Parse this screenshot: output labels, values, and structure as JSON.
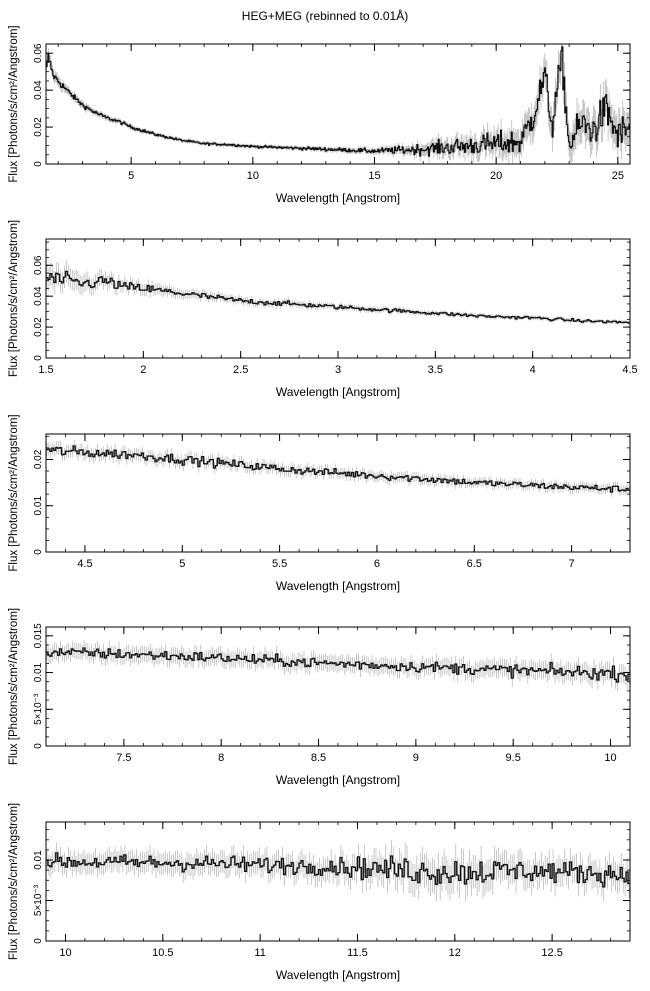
{
  "figure_title": "HEG+MEG (rebinned to 0.01Å)",
  "chart_data": [
    {
      "type": "line",
      "style": "histogram with error bars",
      "xlabel": "Wavelength [Angstrom]",
      "ylabel": "Flux [Photons/s/cm²/Angstrom]",
      "xlim": [
        1.5,
        25.5
      ],
      "ylim": [
        0,
        0.065
      ],
      "xticks": [
        {
          "v": 5,
          "label": "5"
        },
        {
          "v": 10,
          "label": "10"
        },
        {
          "v": 15,
          "label": "15"
        },
        {
          "v": 20,
          "label": "20"
        },
        {
          "v": 25,
          "label": "25"
        }
      ],
      "yticks": [
        {
          "v": 0,
          "label": "0"
        },
        {
          "v": 0.02,
          "label": "0.02"
        },
        {
          "v": 0.04,
          "label": "0.04"
        },
        {
          "v": 0.06,
          "label": "0.06"
        }
      ],
      "x": [
        1.5,
        1.6,
        1.8,
        2,
        2.5,
        3,
        3.5,
        4,
        4.5,
        5,
        6,
        7,
        8,
        9,
        10,
        11,
        12,
        13,
        14,
        15,
        16,
        17,
        18,
        19,
        20,
        21,
        21.5,
        22,
        22.3,
        22.7,
        23,
        23.5,
        24,
        24.5,
        25,
        25.5
      ],
      "y": [
        0.05,
        0.058,
        0.048,
        0.045,
        0.038,
        0.032,
        0.028,
        0.025,
        0.023,
        0.02,
        0.016,
        0.013,
        0.011,
        0.0105,
        0.0095,
        0.009,
        0.0085,
        0.008,
        0.0075,
        0.007,
        0.0075,
        0.008,
        0.009,
        0.01,
        0.011,
        0.012,
        0.025,
        0.048,
        0.02,
        0.058,
        0.01,
        0.022,
        0.018,
        0.03,
        0.015,
        0.02
      ],
      "noise": [
        0.002,
        0.003,
        0.002,
        0.002,
        0.0015,
        0.0012,
        0.001,
        0.001,
        0.0009,
        0.0008,
        0.0007,
        0.0006,
        0.0006,
        0.0006,
        0.0006,
        0.0007,
        0.0008,
        0.0009,
        0.001,
        0.0012,
        0.002,
        0.003,
        0.004,
        0.005,
        0.006,
        0.007,
        0.008,
        0.008,
        0.008,
        0.008,
        0.008,
        0.009,
        0.009,
        0.009,
        0.009,
        0.009
      ],
      "err": [
        0.003,
        0.003,
        0.003,
        0.003,
        0.002,
        0.002,
        0.0015,
        0.0015,
        0.0013,
        0.0012,
        0.001,
        0.001,
        0.001,
        0.001,
        0.001,
        0.001,
        0.001,
        0.0012,
        0.0013,
        0.0015,
        0.002,
        0.003,
        0.004,
        0.005,
        0.006,
        0.007,
        0.008,
        0.008,
        0.008,
        0.008,
        0.008,
        0.009,
        0.009,
        0.009,
        0.009,
        0.009
      ],
      "bin_width": 0.04
    },
    {
      "type": "line",
      "style": "histogram with error bars",
      "xlabel": "Wavelength [Angstrom]",
      "ylabel": "Flux [Photons/s/cm²/Angstrom]",
      "xlim": [
        1.5,
        4.5
      ],
      "ylim": [
        0,
        0.077
      ],
      "xticks": [
        {
          "v": 1.5,
          "label": "1.5"
        },
        {
          "v": 2,
          "label": "2"
        },
        {
          "v": 2.5,
          "label": "2.5"
        },
        {
          "v": 3,
          "label": "3"
        },
        {
          "v": 3.5,
          "label": "3.5"
        },
        {
          "v": 4,
          "label": "4"
        },
        {
          "v": 4.5,
          "label": "4.5"
        }
      ],
      "yticks": [
        {
          "v": 0,
          "label": "0"
        },
        {
          "v": 0.02,
          "label": "0.02"
        },
        {
          "v": 0.04,
          "label": "0.04"
        },
        {
          "v": 0.06,
          "label": "0.06"
        }
      ],
      "x": [
        1.5,
        1.6,
        1.7,
        1.8,
        1.9,
        2,
        2.25,
        2.5,
        2.75,
        3,
        3.25,
        3.5,
        3.75,
        4,
        4.25,
        4.5
      ],
      "y": [
        0.052,
        0.05,
        0.048,
        0.05,
        0.046,
        0.045,
        0.041,
        0.037,
        0.035,
        0.033,
        0.031,
        0.029,
        0.027,
        0.026,
        0.024,
        0.023
      ],
      "noise": [
        0.006,
        0.005,
        0.004,
        0.004,
        0.003,
        0.003,
        0.002,
        0.0017,
        0.0015,
        0.0013,
        0.0012,
        0.0011,
        0.001,
        0.001,
        0.0009,
        0.0009
      ],
      "err": [
        0.008,
        0.007,
        0.006,
        0.005,
        0.004,
        0.004,
        0.003,
        0.0025,
        0.0022,
        0.002,
        0.0018,
        0.0016,
        0.0015,
        0.0014,
        0.0013,
        0.0013
      ],
      "bin_width": 0.01
    },
    {
      "type": "line",
      "style": "histogram with error bars",
      "xlabel": "Wavelength [Angstrom]",
      "ylabel": "Flux [Photons/s/cm²/Angstrom]",
      "xlim": [
        4.3,
        7.3
      ],
      "ylim": [
        0,
        0.0255
      ],
      "xticks": [
        {
          "v": 4.5,
          "label": "4.5"
        },
        {
          "v": 5,
          "label": "5"
        },
        {
          "v": 5.5,
          "label": "5.5"
        },
        {
          "v": 6,
          "label": "6"
        },
        {
          "v": 6.5,
          "label": "6.5"
        },
        {
          "v": 7,
          "label": "7"
        }
      ],
      "yticks": [
        {
          "v": 0,
          "label": "0"
        },
        {
          "v": 0.01,
          "label": "0.01"
        },
        {
          "v": 0.02,
          "label": "0.02"
        }
      ],
      "x": [
        4.3,
        4.5,
        4.75,
        5,
        5.25,
        5.5,
        5.75,
        6,
        6.25,
        6.5,
        6.75,
        7,
        7.3
      ],
      "y": [
        0.022,
        0.0215,
        0.021,
        0.02,
        0.019,
        0.018,
        0.0172,
        0.0165,
        0.0158,
        0.015,
        0.0145,
        0.014,
        0.0135
      ],
      "noise": [
        0.0012,
        0.0011,
        0.001,
        0.001,
        0.0009,
        0.0009,
        0.0008,
        0.0008,
        0.0008,
        0.0007,
        0.0007,
        0.0007,
        0.0007
      ],
      "err": [
        0.0014,
        0.0014,
        0.0013,
        0.0013,
        0.0012,
        0.0012,
        0.0011,
        0.0011,
        0.0011,
        0.001,
        0.001,
        0.001,
        0.001
      ],
      "bin_width": 0.01
    },
    {
      "type": "line",
      "style": "histogram with error bars",
      "xlabel": "Wavelength [Angstrom]",
      "ylabel": "Flux [Photons/s/cm²/Angstrom]",
      "xlim": [
        7.1,
        10.1
      ],
      "ylim": [
        0,
        0.0162
      ],
      "xticks": [
        {
          "v": 7.5,
          "label": "7.5"
        },
        {
          "v": 8,
          "label": "8"
        },
        {
          "v": 8.5,
          "label": "8.5"
        },
        {
          "v": 9,
          "label": "9"
        },
        {
          "v": 9.5,
          "label": "9.5"
        },
        {
          "v": 10,
          "label": "10"
        }
      ],
      "yticks": [
        {
          "v": 0,
          "label": "0"
        },
        {
          "v": 0.005,
          "label": "5×10⁻³"
        },
        {
          "v": 0.01,
          "label": "0.01"
        },
        {
          "v": 0.015,
          "label": "0.015"
        }
      ],
      "x": [
        7.1,
        7.5,
        8,
        8.5,
        9,
        9.5,
        10.1
      ],
      "y": [
        0.0128,
        0.0125,
        0.012,
        0.0113,
        0.0108,
        0.0103,
        0.0098
      ],
      "noise": [
        0.0007,
        0.0007,
        0.0007,
        0.0007,
        0.0007,
        0.0008,
        0.0009
      ],
      "err": [
        0.0011,
        0.0011,
        0.0011,
        0.0011,
        0.0011,
        0.0012,
        0.0013
      ],
      "bin_width": 0.01
    },
    {
      "type": "line",
      "style": "histogram with error bars",
      "xlabel": "Wavelength [Angstrom]",
      "ylabel": "Flux [Photons/s/cm²/Angstrom]",
      "xlim": [
        9.9,
        12.9
      ],
      "ylim": [
        0,
        0.0147
      ],
      "xticks": [
        {
          "v": 10,
          "label": "10"
        },
        {
          "v": 10.5,
          "label": "10.5"
        },
        {
          "v": 11,
          "label": "11"
        },
        {
          "v": 11.5,
          "label": "11.5"
        },
        {
          "v": 12,
          "label": "12"
        },
        {
          "v": 12.5,
          "label": "12.5"
        }
      ],
      "yticks": [
        {
          "v": 0,
          "label": "0"
        },
        {
          "v": 0.005,
          "label": "5×10⁻³"
        },
        {
          "v": 0.01,
          "label": "0.01"
        }
      ],
      "x": [
        9.9,
        10.3,
        10.7,
        11,
        11.4,
        11.7,
        12,
        12.3,
        12.6,
        12.9
      ],
      "y": [
        0.0098,
        0.0097,
        0.0096,
        0.0094,
        0.0092,
        0.0088,
        0.0085,
        0.0087,
        0.0085,
        0.0082
      ],
      "noise": [
        0.0009,
        0.0009,
        0.001,
        0.001,
        0.0011,
        0.0016,
        0.0018,
        0.0014,
        0.0013,
        0.0014
      ],
      "err": [
        0.0013,
        0.0013,
        0.0014,
        0.0014,
        0.0015,
        0.002,
        0.0022,
        0.0018,
        0.0017,
        0.0018
      ],
      "bin_width": 0.01
    }
  ]
}
